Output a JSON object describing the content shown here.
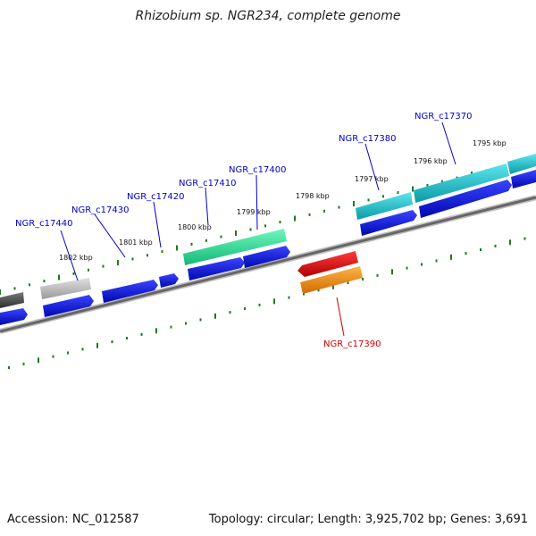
{
  "title": "Rhizobium sp. NGR234, complete genome",
  "footer": {
    "accession": "Accession: NC_012587",
    "summary": "Topology: circular; Length: 3,925,702 bp; Genes: 3,691"
  },
  "colors": {
    "backbone": "#7a7a7a",
    "tick": "#1e7a1e",
    "gene_label": "#0000cc",
    "highlight_label": "#cc0000",
    "cds": "#0a14e6",
    "teal": "#18c8d4",
    "green": "#2ee69a",
    "red": "#e60000",
    "orange": "#ff8c00",
    "gray": "#bdbdbd",
    "darkgray": "#4d4d4d"
  },
  "scale": {
    "unit": "kbp",
    "ticks": [
      {
        "label": "1802 kbp",
        "pos": 1802
      },
      {
        "label": "1801 kbp",
        "pos": 1801
      },
      {
        "label": "1800 kbp",
        "pos": 1800
      },
      {
        "label": "1799 kbp",
        "pos": 1799
      },
      {
        "label": "1798 kbp",
        "pos": 1798
      },
      {
        "label": "1797 kbp",
        "pos": 1797
      },
      {
        "label": "1796 kbp",
        "pos": 1796
      },
      {
        "label": "1795 kbp",
        "pos": 1795
      }
    ]
  },
  "genes": [
    {
      "name": "NGR_c17440",
      "kind": "normal"
    },
    {
      "name": "NGR_c17430",
      "kind": "normal"
    },
    {
      "name": "NGR_c17420",
      "kind": "normal"
    },
    {
      "name": "NGR_c17410",
      "kind": "normal"
    },
    {
      "name": "NGR_c17400",
      "kind": "normal"
    },
    {
      "name": "NGR_c17380",
      "kind": "normal"
    },
    {
      "name": "NGR_c17370",
      "kind": "normal"
    },
    {
      "name": "NGR_c17390",
      "kind": "highlight"
    }
  ]
}
